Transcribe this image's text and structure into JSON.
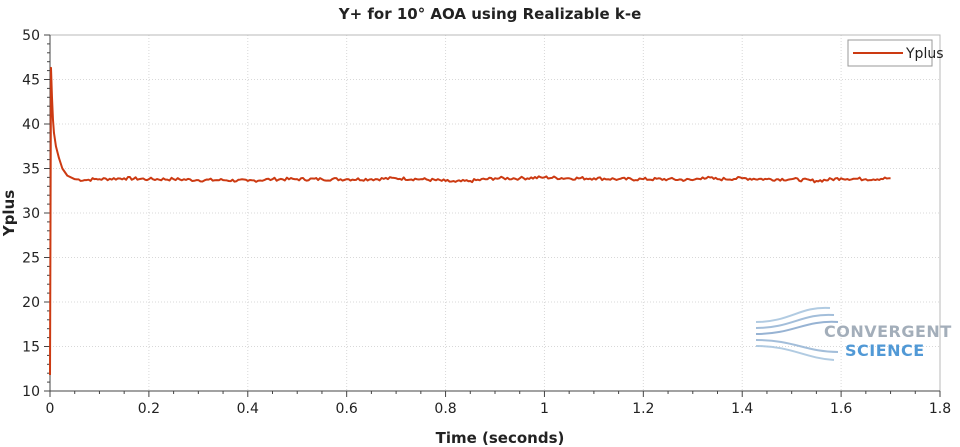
{
  "chart_data": {
    "type": "line",
    "title": "Y+ for 10°  AOA using Realizable k-e",
    "xlabel": "Time (seconds)",
    "ylabel": "Yplus",
    "xlim": [
      0,
      1.8
    ],
    "ylim": [
      10,
      50
    ],
    "xticks": [
      "0",
      "0.2",
      "0.4",
      "0.6",
      "0.8",
      "1",
      "1.2",
      "1.4",
      "1.6",
      "1.8"
    ],
    "yticks": [
      "10",
      "15",
      "20",
      "25",
      "30",
      "35",
      "40",
      "45",
      "50"
    ],
    "grid": true,
    "legend_position": "top-right",
    "series": [
      {
        "name": "Yplus",
        "color": "#cc3a12",
        "x": [
          0.0,
          0.002,
          0.004,
          0.006,
          0.008,
          0.012,
          0.018,
          0.025,
          0.035,
          0.05,
          0.07,
          0.09,
          0.1,
          0.15,
          0.2,
          0.25,
          0.3,
          0.35,
          0.4,
          0.45,
          0.5,
          0.55,
          0.6,
          0.65,
          0.7,
          0.75,
          0.8,
          0.82,
          0.85,
          0.9,
          0.95,
          1.0,
          1.05,
          1.1,
          1.15,
          1.2,
          1.25,
          1.3,
          1.32,
          1.35,
          1.4,
          1.45,
          1.5,
          1.55,
          1.6,
          1.65,
          1.7
        ],
        "y": [
          11.8,
          46.3,
          43.0,
          40.5,
          39.0,
          37.5,
          36.2,
          35.0,
          34.2,
          33.8,
          33.7,
          33.8,
          33.8,
          33.9,
          33.8,
          33.8,
          33.7,
          33.7,
          33.6,
          33.8,
          33.8,
          33.8,
          33.8,
          33.8,
          33.9,
          33.8,
          33.6,
          33.5,
          33.6,
          33.9,
          33.9,
          34.0,
          33.9,
          33.9,
          33.8,
          33.8,
          33.8,
          33.7,
          34.0,
          33.8,
          33.9,
          33.8,
          33.8,
          33.6,
          33.9,
          33.8,
          33.9
        ]
      }
    ]
  },
  "watermark": {
    "line1": "CONVERGENT",
    "line2": "SCIENCE",
    "color1": "#9aa6b3",
    "color2": "#3f8fd2"
  }
}
